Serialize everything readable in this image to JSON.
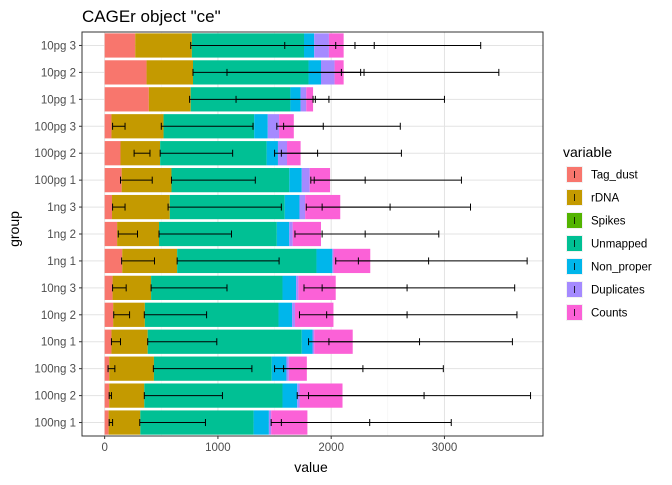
{
  "chart_data": {
    "type": "bar",
    "orientation": "horizontal",
    "stacked": true,
    "title": "CAGEr object \"ce\"",
    "xlabel": "value",
    "ylabel": "group",
    "xlim": [
      -200,
      3870
    ],
    "xticks": [
      0,
      1000,
      2000,
      3000
    ],
    "grid": true,
    "legend_position": "right",
    "legend_title": "variable",
    "categories": [
      "10pg 3",
      "10pg 2",
      "10pg 1",
      "100pg 3",
      "100pg 2",
      "100pg 1",
      "1ng 3",
      "1ng 2",
      "1ng 1",
      "10ng 3",
      "10ng 2",
      "10ng 1",
      "100ng 3",
      "100ng 2",
      "100ng 1"
    ],
    "series": [
      {
        "name": "Tag_dust",
        "color": "#F8766D",
        "values": [
          270,
          370,
          390,
          60,
          140,
          150,
          65,
          110,
          155,
          70,
          75,
          60,
          40,
          40,
          35
        ]
      },
      {
        "name": "rDNA",
        "color": "#C49A00",
        "values": [
          500,
          410,
          370,
          460,
          350,
          440,
          510,
          370,
          485,
          340,
          280,
          320,
          395,
          310,
          280
        ]
      },
      {
        "name": "Spikes",
        "color": "#53B400",
        "values": [
          0,
          0,
          0,
          0,
          0,
          0,
          0,
          0,
          0,
          0,
          0,
          0,
          0,
          0,
          0
        ]
      },
      {
        "name": "Unmapped",
        "color": "#00C094",
        "values": [
          990,
          1020,
          880,
          800,
          940,
          1040,
          1015,
          1040,
          1230,
          1160,
          1180,
          1360,
          1040,
          1220,
          1000
        ]
      },
      {
        "name": "Non_proper",
        "color": "#00B6EB",
        "values": [
          90,
          110,
          90,
          120,
          100,
          110,
          130,
          110,
          140,
          120,
          120,
          95,
          130,
          130,
          135
        ]
      },
      {
        "name": "Duplicates",
        "color": "#A58AFF",
        "values": [
          130,
          120,
          50,
          100,
          80,
          70,
          50,
          30,
          10,
          20,
          25,
          15,
          20,
          20,
          20
        ]
      },
      {
        "name": "Counts",
        "color": "#FB61D7",
        "values": [
          130,
          80,
          60,
          130,
          120,
          180,
          310,
          250,
          325,
          330,
          340,
          340,
          160,
          380,
          320
        ]
      }
    ],
    "error_bars": [
      {
        "category": "10pg 3",
        "intervals": [
          [
            2040,
            2380
          ],
          [
            1590,
            2210
          ],
          [
            760,
            3320
          ]
        ]
      },
      {
        "category": "10pg 2",
        "intervals": [
          [
            2090,
            2290
          ],
          [
            1080,
            2260
          ],
          [
            780,
            3480
          ]
        ]
      },
      {
        "category": "10pg 1",
        "intervals": [
          [
            1840,
            1980
          ],
          [
            1160,
            1860
          ],
          [
            750,
            3000
          ]
        ]
      },
      {
        "category": "100pg 3",
        "intervals": [
          [
            1520,
            1930
          ],
          [
            500,
            1310
          ],
          [
            70,
            180
          ],
          [
            1580,
            2610
          ]
        ]
      },
      {
        "category": "100pg 2",
        "intervals": [
          [
            1500,
            1880
          ],
          [
            490,
            1130
          ],
          [
            260,
            400
          ],
          [
            1560,
            2620
          ]
        ]
      },
      {
        "category": "100pg 1",
        "intervals": [
          [
            1850,
            2300
          ],
          [
            590,
            1330
          ],
          [
            140,
            420
          ],
          [
            1820,
            3150
          ]
        ]
      },
      {
        "category": "1ng 3",
        "intervals": [
          [
            1780,
            2520
          ],
          [
            560,
            1560
          ],
          [
            70,
            180
          ],
          [
            1920,
            3230
          ]
        ]
      },
      {
        "category": "1ng 2",
        "intervals": [
          [
            1680,
            2300
          ],
          [
            480,
            1120
          ],
          [
            120,
            290
          ],
          [
            1920,
            2950
          ]
        ]
      },
      {
        "category": "1ng 1",
        "intervals": [
          [
            2040,
            2860
          ],
          [
            640,
            1540
          ],
          [
            150,
            440
          ],
          [
            2240,
            3730
          ]
        ]
      },
      {
        "category": "10ng 3",
        "intervals": [
          [
            1760,
            2670
          ],
          [
            410,
            1080
          ],
          [
            70,
            190
          ],
          [
            1920,
            3620
          ]
        ]
      },
      {
        "category": "10ng 2",
        "intervals": [
          [
            1720,
            2670
          ],
          [
            350,
            900
          ],
          [
            80,
            220
          ],
          [
            1960,
            3640
          ]
        ]
      },
      {
        "category": "10ng 1",
        "intervals": [
          [
            1800,
            2780
          ],
          [
            380,
            990
          ],
          [
            60,
            140
          ],
          [
            1980,
            3600
          ]
        ]
      },
      {
        "category": "100ng 3",
        "intervals": [
          [
            1500,
            2280
          ],
          [
            430,
            1300
          ],
          [
            30,
            90
          ],
          [
            1580,
            2990
          ]
        ]
      },
      {
        "category": "100ng 2",
        "intervals": [
          [
            1700,
            2820
          ],
          [
            350,
            1040
          ],
          [
            40,
            60
          ],
          [
            1800,
            3760
          ]
        ]
      },
      {
        "category": "100ng 1",
        "intervals": [
          [
            1470,
            2340
          ],
          [
            310,
            890
          ],
          [
            40,
            70
          ],
          [
            1560,
            3060
          ]
        ]
      }
    ]
  }
}
